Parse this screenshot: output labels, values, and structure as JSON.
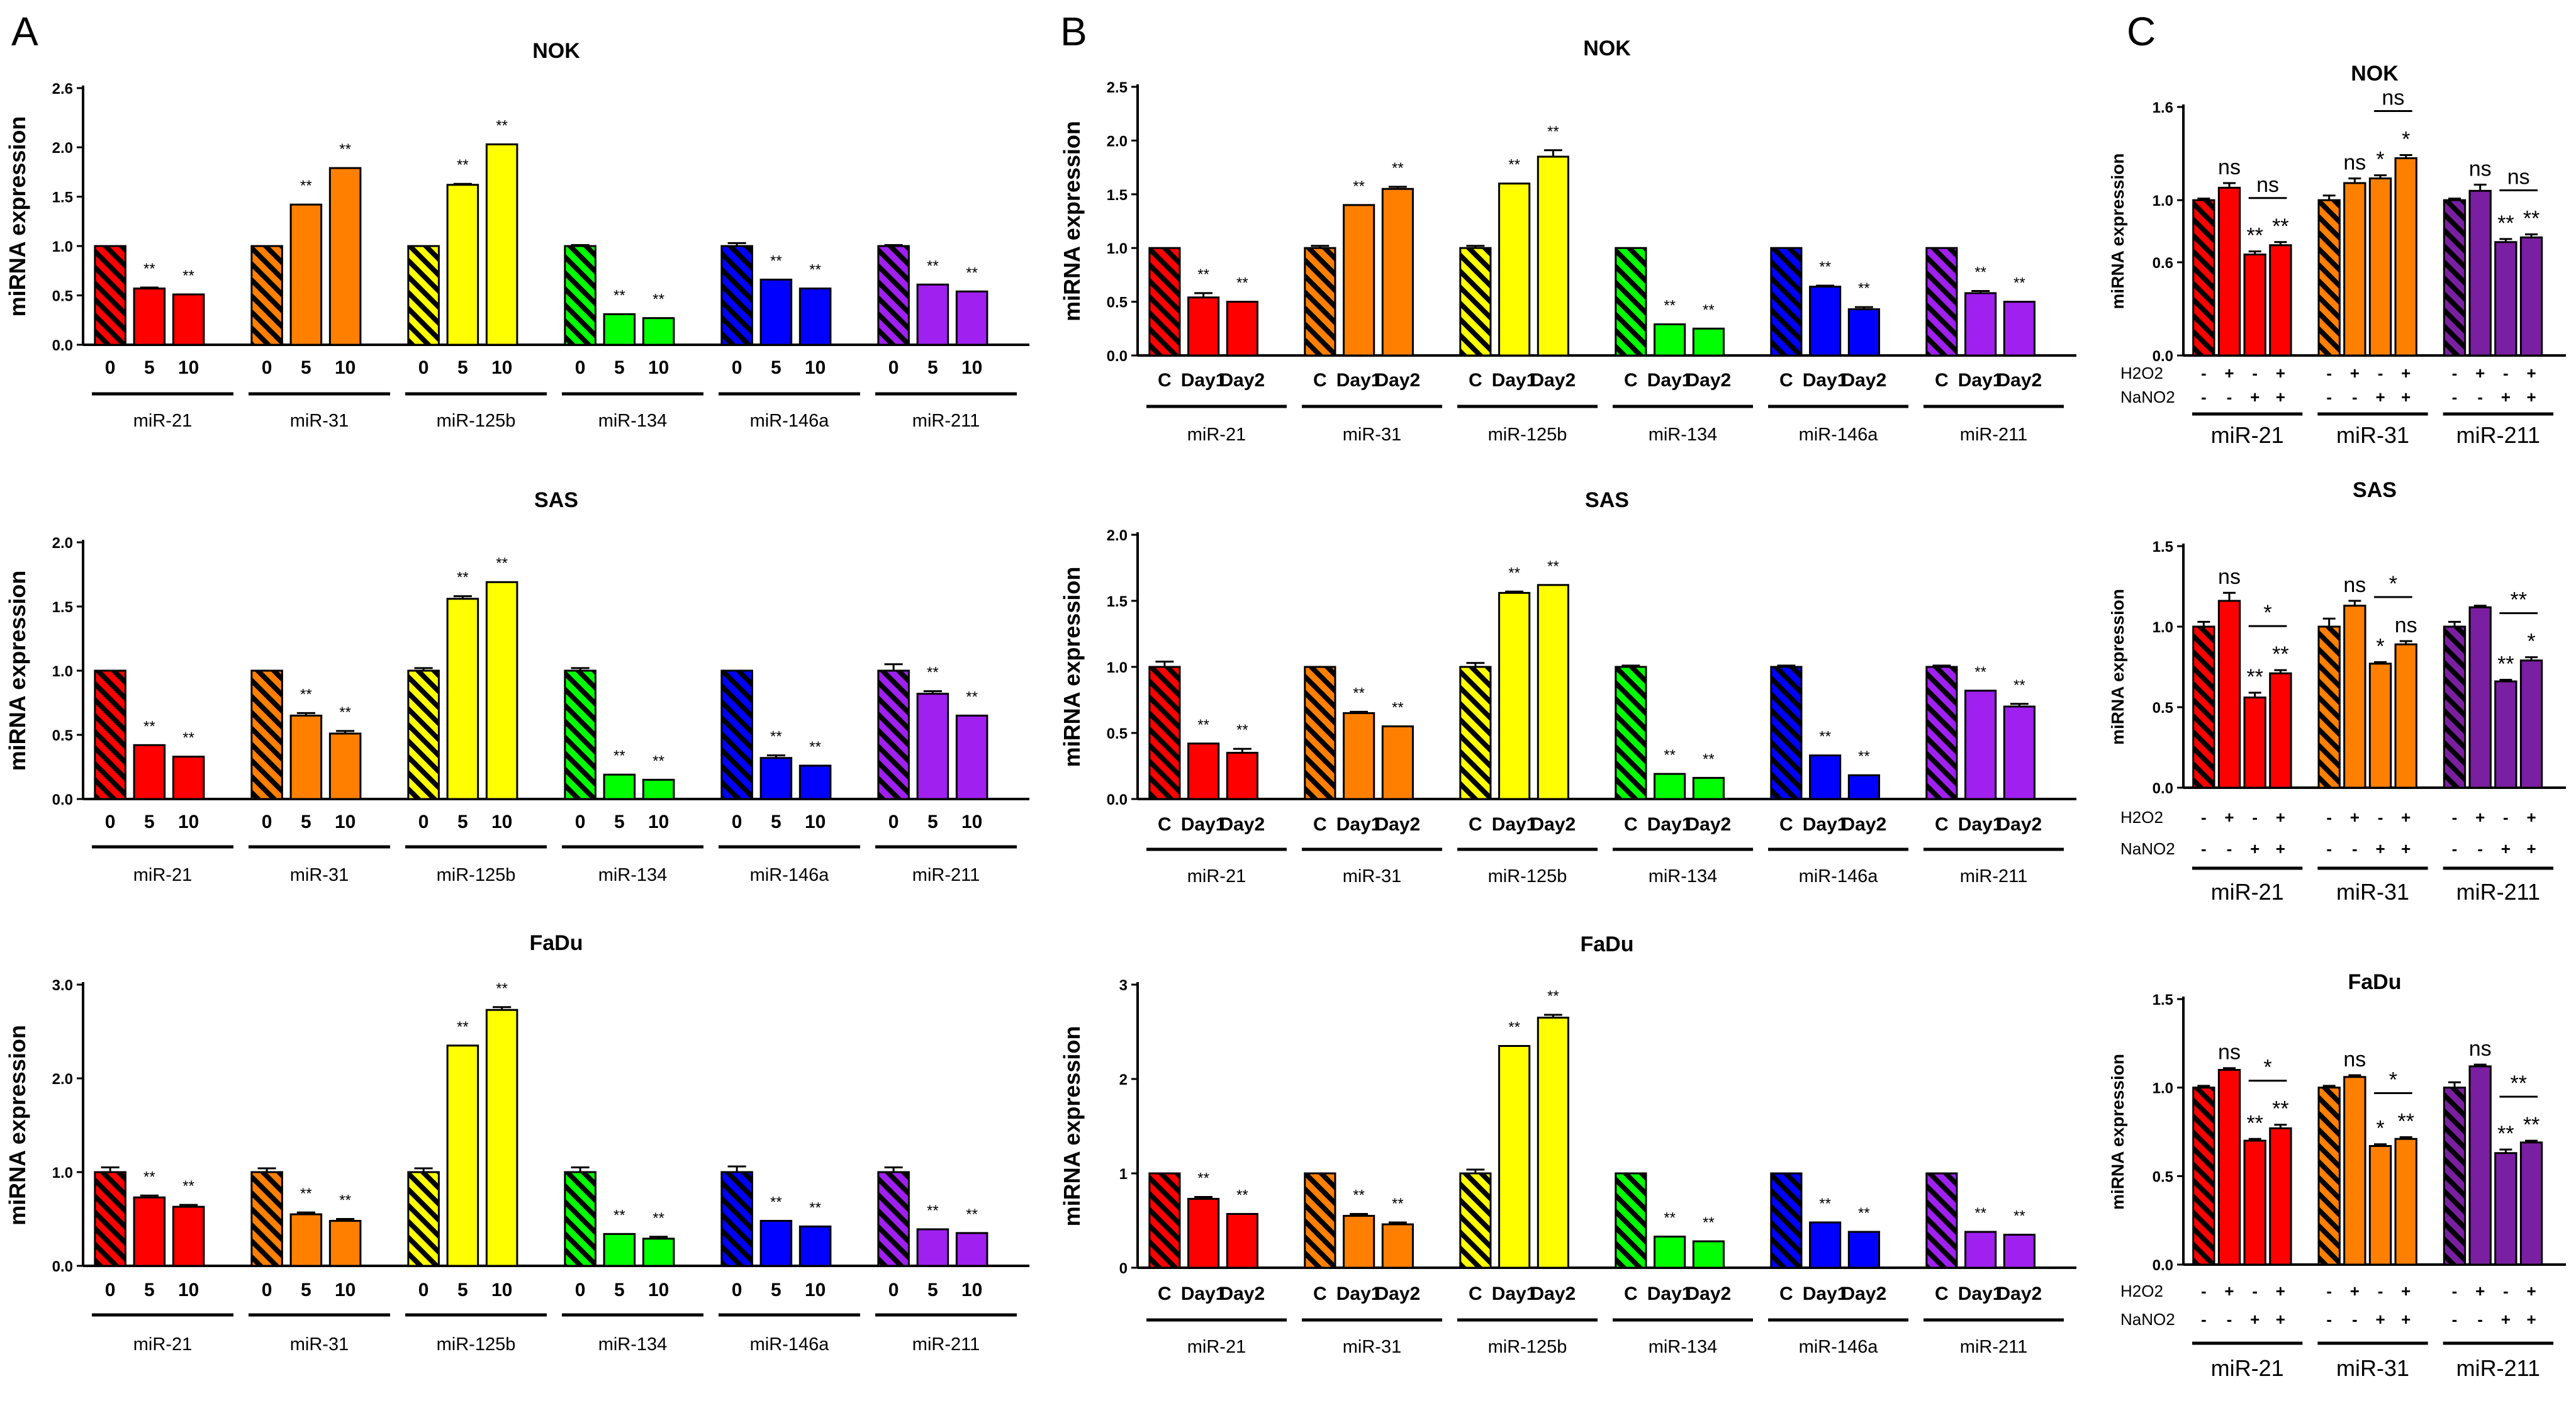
{
  "panel_labels": [
    "A",
    "B",
    "C"
  ],
  "colors": {
    "miR-21": "#ff0000",
    "miR-31": "#ff7f00",
    "miR-125b": "#ffff00",
    "miR-134": "#00ff00",
    "miR-146a": "#0000ff",
    "miR-211": "#a020f0",
    "miR-211_C": "#7b1fa2"
  },
  "chart_data": [
    {
      "id": "A-NOK",
      "panel": "A",
      "type": "bar",
      "title": "NOK",
      "ylabel": "miRNA expression",
      "ylim": [
        0,
        2.6
      ],
      "yticks": [
        "0.0",
        "0.5",
        "1.0",
        "1.5",
        "2.0",
        "2.6"
      ],
      "ytick_values": [
        0,
        0.5,
        1.0,
        1.5,
        2.0,
        2.6
      ],
      "groups": [
        "miR-21",
        "miR-31",
        "miR-125b",
        "miR-134",
        "miR-146a",
        "miR-211"
      ],
      "categories": [
        "0",
        "5",
        "10"
      ],
      "values": [
        [
          1.0,
          0.57,
          0.51
        ],
        [
          1.0,
          1.42,
          1.79
        ],
        [
          1.0,
          1.62,
          2.03
        ],
        [
          1.0,
          0.31,
          0.27
        ],
        [
          1.0,
          0.66,
          0.57
        ],
        [
          1.0,
          0.61,
          0.54
        ]
      ],
      "errors": [
        [
          0,
          0.01,
          0
        ],
        [
          0,
          0,
          0
        ],
        [
          0,
          0.01,
          0
        ],
        [
          0.01,
          0,
          0
        ],
        [
          0.03,
          0,
          0
        ],
        [
          0.01,
          0,
          0
        ]
      ],
      "significance": [
        [
          "",
          "**",
          "**"
        ],
        [
          "",
          "**",
          "**"
        ],
        [
          "",
          "**",
          "**"
        ],
        [
          "",
          "**",
          "**"
        ],
        [
          "",
          "**",
          "**"
        ],
        [
          "",
          "**",
          "**"
        ]
      ]
    },
    {
      "id": "A-SAS",
      "panel": "A",
      "type": "bar",
      "title": "SAS",
      "ylabel": "miRNA expression",
      "ylim": [
        0,
        2.0
      ],
      "yticks": [
        "0.0",
        "0.5",
        "1.0",
        "1.5",
        "2.0"
      ],
      "ytick_values": [
        0,
        0.5,
        1.0,
        1.5,
        2.0
      ],
      "groups": [
        "miR-21",
        "miR-31",
        "miR-125b",
        "miR-134",
        "miR-146a",
        "miR-211"
      ],
      "categories": [
        "0",
        "5",
        "10"
      ],
      "values": [
        [
          1.0,
          0.42,
          0.33
        ],
        [
          1.0,
          0.65,
          0.51
        ],
        [
          1.0,
          1.56,
          1.69
        ],
        [
          1.0,
          0.19,
          0.15
        ],
        [
          1.0,
          0.32,
          0.26
        ],
        [
          1.0,
          0.82,
          0.65
        ]
      ],
      "errors": [
        [
          0,
          0,
          0
        ],
        [
          0,
          0.02,
          0.02
        ],
        [
          0.02,
          0.02,
          0
        ],
        [
          0.02,
          0,
          0
        ],
        [
          0,
          0.02,
          0
        ],
        [
          0.05,
          0.02,
          0
        ]
      ],
      "significance": [
        [
          "",
          "**",
          "**"
        ],
        [
          "",
          "**",
          "**"
        ],
        [
          "",
          "**",
          "**"
        ],
        [
          "",
          "**",
          "**"
        ],
        [
          "",
          "**",
          "**"
        ],
        [
          "",
          "**",
          "**"
        ]
      ]
    },
    {
      "id": "A-FaDu",
      "panel": "A",
      "type": "bar",
      "title": "FaDu",
      "ylabel": "miRNA  expression",
      "ylim": [
        0,
        3.0
      ],
      "yticks": [
        "0.0",
        "1.0",
        "2.0",
        "3.0"
      ],
      "ytick_values": [
        0,
        1.0,
        2.0,
        3.0
      ],
      "groups": [
        "miR-21",
        "miR-31",
        "miR-125b",
        "miR-134",
        "miR-146a",
        "miR-211"
      ],
      "categories": [
        "0",
        "5",
        "10"
      ],
      "values": [
        [
          1.0,
          0.73,
          0.63
        ],
        [
          1.0,
          0.55,
          0.48
        ],
        [
          1.0,
          2.35,
          2.73
        ],
        [
          1.0,
          0.34,
          0.29
        ],
        [
          1.0,
          0.48,
          0.42
        ],
        [
          1.0,
          0.39,
          0.35
        ]
      ],
      "errors": [
        [
          0.05,
          0.02,
          0.02
        ],
        [
          0.04,
          0.02,
          0.02
        ],
        [
          0.04,
          0,
          0.03
        ],
        [
          0.05,
          0,
          0.02
        ],
        [
          0.06,
          0,
          0
        ],
        [
          0.05,
          0,
          0
        ]
      ],
      "significance": [
        [
          "",
          "**",
          "**"
        ],
        [
          "",
          "**",
          "**"
        ],
        [
          "",
          "**",
          "**"
        ],
        [
          "",
          "**",
          "**"
        ],
        [
          "",
          "**",
          "**"
        ],
        [
          "",
          "**",
          "**"
        ]
      ]
    },
    {
      "id": "B-NOK",
      "panel": "B",
      "type": "bar",
      "title": "NOK",
      "ylabel": "miRNA expression",
      "ylim": [
        0,
        2.5
      ],
      "yticks": [
        "0.0",
        "0.5",
        "1.0",
        "1.5",
        "2.0",
        "2.5"
      ],
      "ytick_values": [
        0,
        0.5,
        1.0,
        1.5,
        2.0,
        2.5
      ],
      "groups": [
        "miR-21",
        "miR-31",
        "miR-125b",
        "miR-134",
        "miR-146a",
        "miR-211"
      ],
      "categories": [
        "C",
        "Day1",
        "Day2"
      ],
      "values": [
        [
          1.0,
          0.54,
          0.5
        ],
        [
          1.0,
          1.4,
          1.55
        ],
        [
          1.0,
          1.6,
          1.85
        ],
        [
          1.0,
          0.29,
          0.25
        ],
        [
          1.0,
          0.64,
          0.43
        ],
        [
          1.0,
          0.58,
          0.5
        ]
      ],
      "errors": [
        [
          0,
          0.04,
          0
        ],
        [
          0.02,
          0,
          0.02
        ],
        [
          0.02,
          0,
          0.06
        ],
        [
          0,
          0,
          0
        ],
        [
          0,
          0.01,
          0.02
        ],
        [
          0,
          0.02,
          0
        ]
      ],
      "significance": [
        [
          "",
          "**",
          "**"
        ],
        [
          "",
          "**",
          "**"
        ],
        [
          "",
          "**",
          "**"
        ],
        [
          "",
          "**",
          "**"
        ],
        [
          "",
          "**",
          "**"
        ],
        [
          "",
          "**",
          "**"
        ]
      ]
    },
    {
      "id": "B-SAS",
      "panel": "B",
      "type": "bar",
      "title": "SAS",
      "ylabel": "miRNA expression",
      "ylim": [
        0,
        2.0
      ],
      "yticks": [
        "0.0",
        "0.5",
        "1.0",
        "1.5",
        "2.0"
      ],
      "ytick_values": [
        0,
        0.5,
        1.0,
        1.5,
        2.0
      ],
      "groups": [
        "miR-21",
        "miR-31",
        "miR-125b",
        "miR-134",
        "miR-146a",
        "miR-211"
      ],
      "categories": [
        "C",
        "Day1",
        "Day2"
      ],
      "values": [
        [
          1.0,
          0.42,
          0.35
        ],
        [
          1.0,
          0.65,
          0.55
        ],
        [
          1.0,
          1.56,
          1.62
        ],
        [
          1.0,
          0.19,
          0.16
        ],
        [
          1.0,
          0.33,
          0.18
        ],
        [
          1.0,
          0.82,
          0.7
        ]
      ],
      "errors": [
        [
          0.04,
          0,
          0.03
        ],
        [
          0,
          0.01,
          0
        ],
        [
          0.03,
          0.01,
          0
        ],
        [
          0.01,
          0,
          0
        ],
        [
          0.01,
          0,
          0
        ],
        [
          0.01,
          0,
          0.02
        ]
      ],
      "significance": [
        [
          "",
          "**",
          "**"
        ],
        [
          "",
          "**",
          "**"
        ],
        [
          "",
          "**",
          "**"
        ],
        [
          "",
          "**",
          "**"
        ],
        [
          "",
          "**",
          "**"
        ],
        [
          "",
          "**",
          "**"
        ]
      ]
    },
    {
      "id": "B-FaDu",
      "panel": "B",
      "type": "bar",
      "title": "FaDu",
      "ylabel": "miRNA expression",
      "ylim": [
        0,
        3.0
      ],
      "yticks": [
        "0",
        "1",
        "2",
        "3"
      ],
      "ytick_values": [
        0,
        1,
        2,
        3
      ],
      "groups": [
        "miR-21",
        "miR-31",
        "miR-125b",
        "miR-134",
        "miR-146a",
        "miR-211"
      ],
      "categories": [
        "C",
        "Day1",
        "Day2"
      ],
      "values": [
        [
          1.0,
          0.73,
          0.57
        ],
        [
          1.0,
          0.55,
          0.46
        ],
        [
          1.0,
          2.35,
          2.65
        ],
        [
          1.0,
          0.33,
          0.28
        ],
        [
          1.0,
          0.48,
          0.38
        ],
        [
          1.0,
          0.38,
          0.35
        ]
      ],
      "errors": [
        [
          0,
          0.02,
          0
        ],
        [
          0,
          0.02,
          0.02
        ],
        [
          0.04,
          0,
          0.03
        ],
        [
          0,
          0,
          0
        ],
        [
          0,
          0,
          0
        ],
        [
          0,
          0,
          0
        ]
      ],
      "significance": [
        [
          "",
          "**",
          "**"
        ],
        [
          "",
          "**",
          "**"
        ],
        [
          "",
          "**",
          "**"
        ],
        [
          "",
          "**",
          "**"
        ],
        [
          "",
          "**",
          "**"
        ],
        [
          "",
          "**",
          "**"
        ]
      ]
    },
    {
      "id": "C-NOK",
      "panel": "C",
      "type": "bar",
      "title": "NOK",
      "ylabel": "miRNA expression",
      "ylim": [
        0,
        1.6
      ],
      "yticks": [
        "0.0",
        "0.6",
        "1.0",
        "1.6"
      ],
      "ytick_values": [
        0,
        0.6,
        1.0,
        1.6
      ],
      "groups": [
        "miR-21",
        "miR-31",
        "miR-211"
      ],
      "row_labels": [
        "H2O2",
        "NaNO2"
      ],
      "h2o2": [
        "-",
        "+",
        "-",
        "+"
      ],
      "nano2": [
        "-",
        "-",
        "+",
        "+"
      ],
      "values": [
        [
          1.0,
          1.08,
          0.65,
          0.71
        ],
        [
          1.0,
          1.11,
          1.14,
          1.27
        ],
        [
          1.0,
          1.06,
          0.73,
          0.76
        ]
      ],
      "errors": [
        [
          0.01,
          0.03,
          0.02,
          0.02
        ],
        [
          0.03,
          0.03,
          0.02,
          0.02
        ],
        [
          0.01,
          0.04,
          0.02,
          0.02
        ]
      ],
      "significance": [
        [
          "",
          "ns",
          "**",
          "**"
        ],
        [
          "",
          "ns",
          "*",
          "*"
        ],
        [
          "",
          "ns",
          "**",
          "**"
        ]
      ],
      "brackets": [
        {
          "group": 0,
          "label": "ns"
        },
        {
          "group": 1,
          "label": "ns"
        },
        {
          "group": 2,
          "label": "ns"
        }
      ]
    },
    {
      "id": "C-SAS",
      "panel": "C",
      "type": "bar",
      "title": "SAS",
      "ylabel": "miRNA expression",
      "ylim": [
        0,
        1.5
      ],
      "yticks": [
        "0.0",
        "0.5",
        "1.0",
        "1.5"
      ],
      "ytick_values": [
        0,
        0.5,
        1.0,
        1.5
      ],
      "groups": [
        "miR-21",
        "miR-31",
        "miR-211"
      ],
      "row_labels": [
        "H2O2",
        "NaNO2"
      ],
      "h2o2": [
        "-",
        "+",
        "-",
        "+"
      ],
      "nano2": [
        "-",
        "-",
        "+",
        "+"
      ],
      "values": [
        [
          1.0,
          1.16,
          0.56,
          0.71
        ],
        [
          1.0,
          1.13,
          0.77,
          0.89
        ],
        [
          1.0,
          1.12,
          0.66,
          0.79
        ]
      ],
      "errors": [
        [
          0.03,
          0.05,
          0.03,
          0.02
        ],
        [
          0.05,
          0.03,
          0.01,
          0.02
        ],
        [
          0.03,
          0.01,
          0.01,
          0.02
        ]
      ],
      "significance": [
        [
          "",
          "ns",
          "**",
          "**"
        ],
        [
          "",
          "ns",
          "*",
          "ns"
        ],
        [
          "",
          "",
          "**",
          "*"
        ]
      ],
      "brackets": [
        {
          "group": 0,
          "label": "*"
        },
        {
          "group": 1,
          "label": "*"
        },
        {
          "group": 2,
          "label": "**"
        }
      ]
    },
    {
      "id": "C-FaDu",
      "panel": "C",
      "type": "bar",
      "title": "FaDu",
      "ylabel": "miRNA expression",
      "ylim": [
        0,
        1.5
      ],
      "yticks": [
        "0.0",
        "0.5",
        "1.0",
        "1.5"
      ],
      "ytick_values": [
        0,
        0.5,
        1.0,
        1.5
      ],
      "groups": [
        "miR-21",
        "miR-31",
        "miR-211"
      ],
      "row_labels": [
        "H2O2",
        "NaNO2"
      ],
      "h2o2": [
        "-",
        "+",
        "-",
        "+"
      ],
      "nano2": [
        "-",
        "-",
        "+",
        "+"
      ],
      "values": [
        [
          1.0,
          1.1,
          0.7,
          0.77
        ],
        [
          1.0,
          1.06,
          0.67,
          0.71
        ],
        [
          1.0,
          1.12,
          0.63,
          0.69
        ]
      ],
      "errors": [
        [
          0.01,
          0.01,
          0.01,
          0.02
        ],
        [
          0.01,
          0.01,
          0.01,
          0.01
        ],
        [
          0.03,
          0.01,
          0.02,
          0.01
        ]
      ],
      "significance": [
        [
          "",
          "ns",
          "**",
          "**"
        ],
        [
          "",
          "ns",
          "*",
          "**"
        ],
        [
          "",
          "ns",
          "**",
          "**"
        ]
      ],
      "brackets": [
        {
          "group": 0,
          "label": "*"
        },
        {
          "group": 1,
          "label": "*"
        },
        {
          "group": 2,
          "label": "**"
        }
      ]
    }
  ]
}
